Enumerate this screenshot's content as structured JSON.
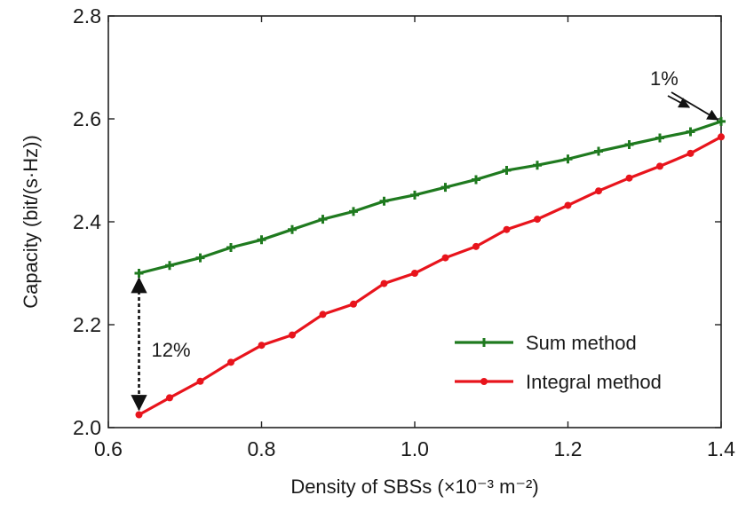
{
  "chart_data": {
    "type": "line",
    "xlabel": "Density of SBSs (×10⁻³ m⁻²)",
    "ylabel": "Capacity (bit/(s·Hz))",
    "xlim": [
      0.6,
      1.4
    ],
    "ylim": [
      2.0,
      2.8
    ],
    "x_ticks": [
      0.6,
      0.8,
      1.0,
      1.2,
      1.4
    ],
    "x_tick_labels": [
      "0.6",
      "0.8",
      "1.0",
      "1.2",
      "1.4"
    ],
    "y_ticks": [
      2.0,
      2.2,
      2.4,
      2.6,
      2.8
    ],
    "y_tick_labels": [
      "2.0",
      "2.2",
      "2.4",
      "2.6",
      "2.8"
    ],
    "grid": false,
    "legend_position": "bottom-right",
    "x": [
      0.64,
      0.68,
      0.72,
      0.76,
      0.8,
      0.84,
      0.88,
      0.92,
      0.96,
      1.0,
      1.04,
      1.08,
      1.12,
      1.16,
      1.2,
      1.24,
      1.28,
      1.32,
      1.36,
      1.4
    ],
    "series": [
      {
        "name": "Sum method",
        "color": "#1f7a1f",
        "marker": "plus",
        "values": [
          2.3,
          2.315,
          2.33,
          2.35,
          2.365,
          2.385,
          2.405,
          2.42,
          2.44,
          2.452,
          2.467,
          2.482,
          2.5,
          2.51,
          2.522,
          2.537,
          2.55,
          2.563,
          2.575,
          2.595
        ]
      },
      {
        "name": "Integral method",
        "color": "#e8141c",
        "marker": "dot",
        "values": [
          2.025,
          2.058,
          2.09,
          2.127,
          2.16,
          2.18,
          2.22,
          2.24,
          2.28,
          2.3,
          2.33,
          2.352,
          2.385,
          2.405,
          2.432,
          2.46,
          2.485,
          2.508,
          2.533,
          2.565
        ]
      }
    ],
    "annotations": [
      {
        "text": "12%",
        "anchor_x": 0.64,
        "y_from": 2.3,
        "y_to": 2.025
      },
      {
        "text": "1%",
        "x": 1.4,
        "y_from": 2.595,
        "y_to": 2.565
      }
    ]
  }
}
